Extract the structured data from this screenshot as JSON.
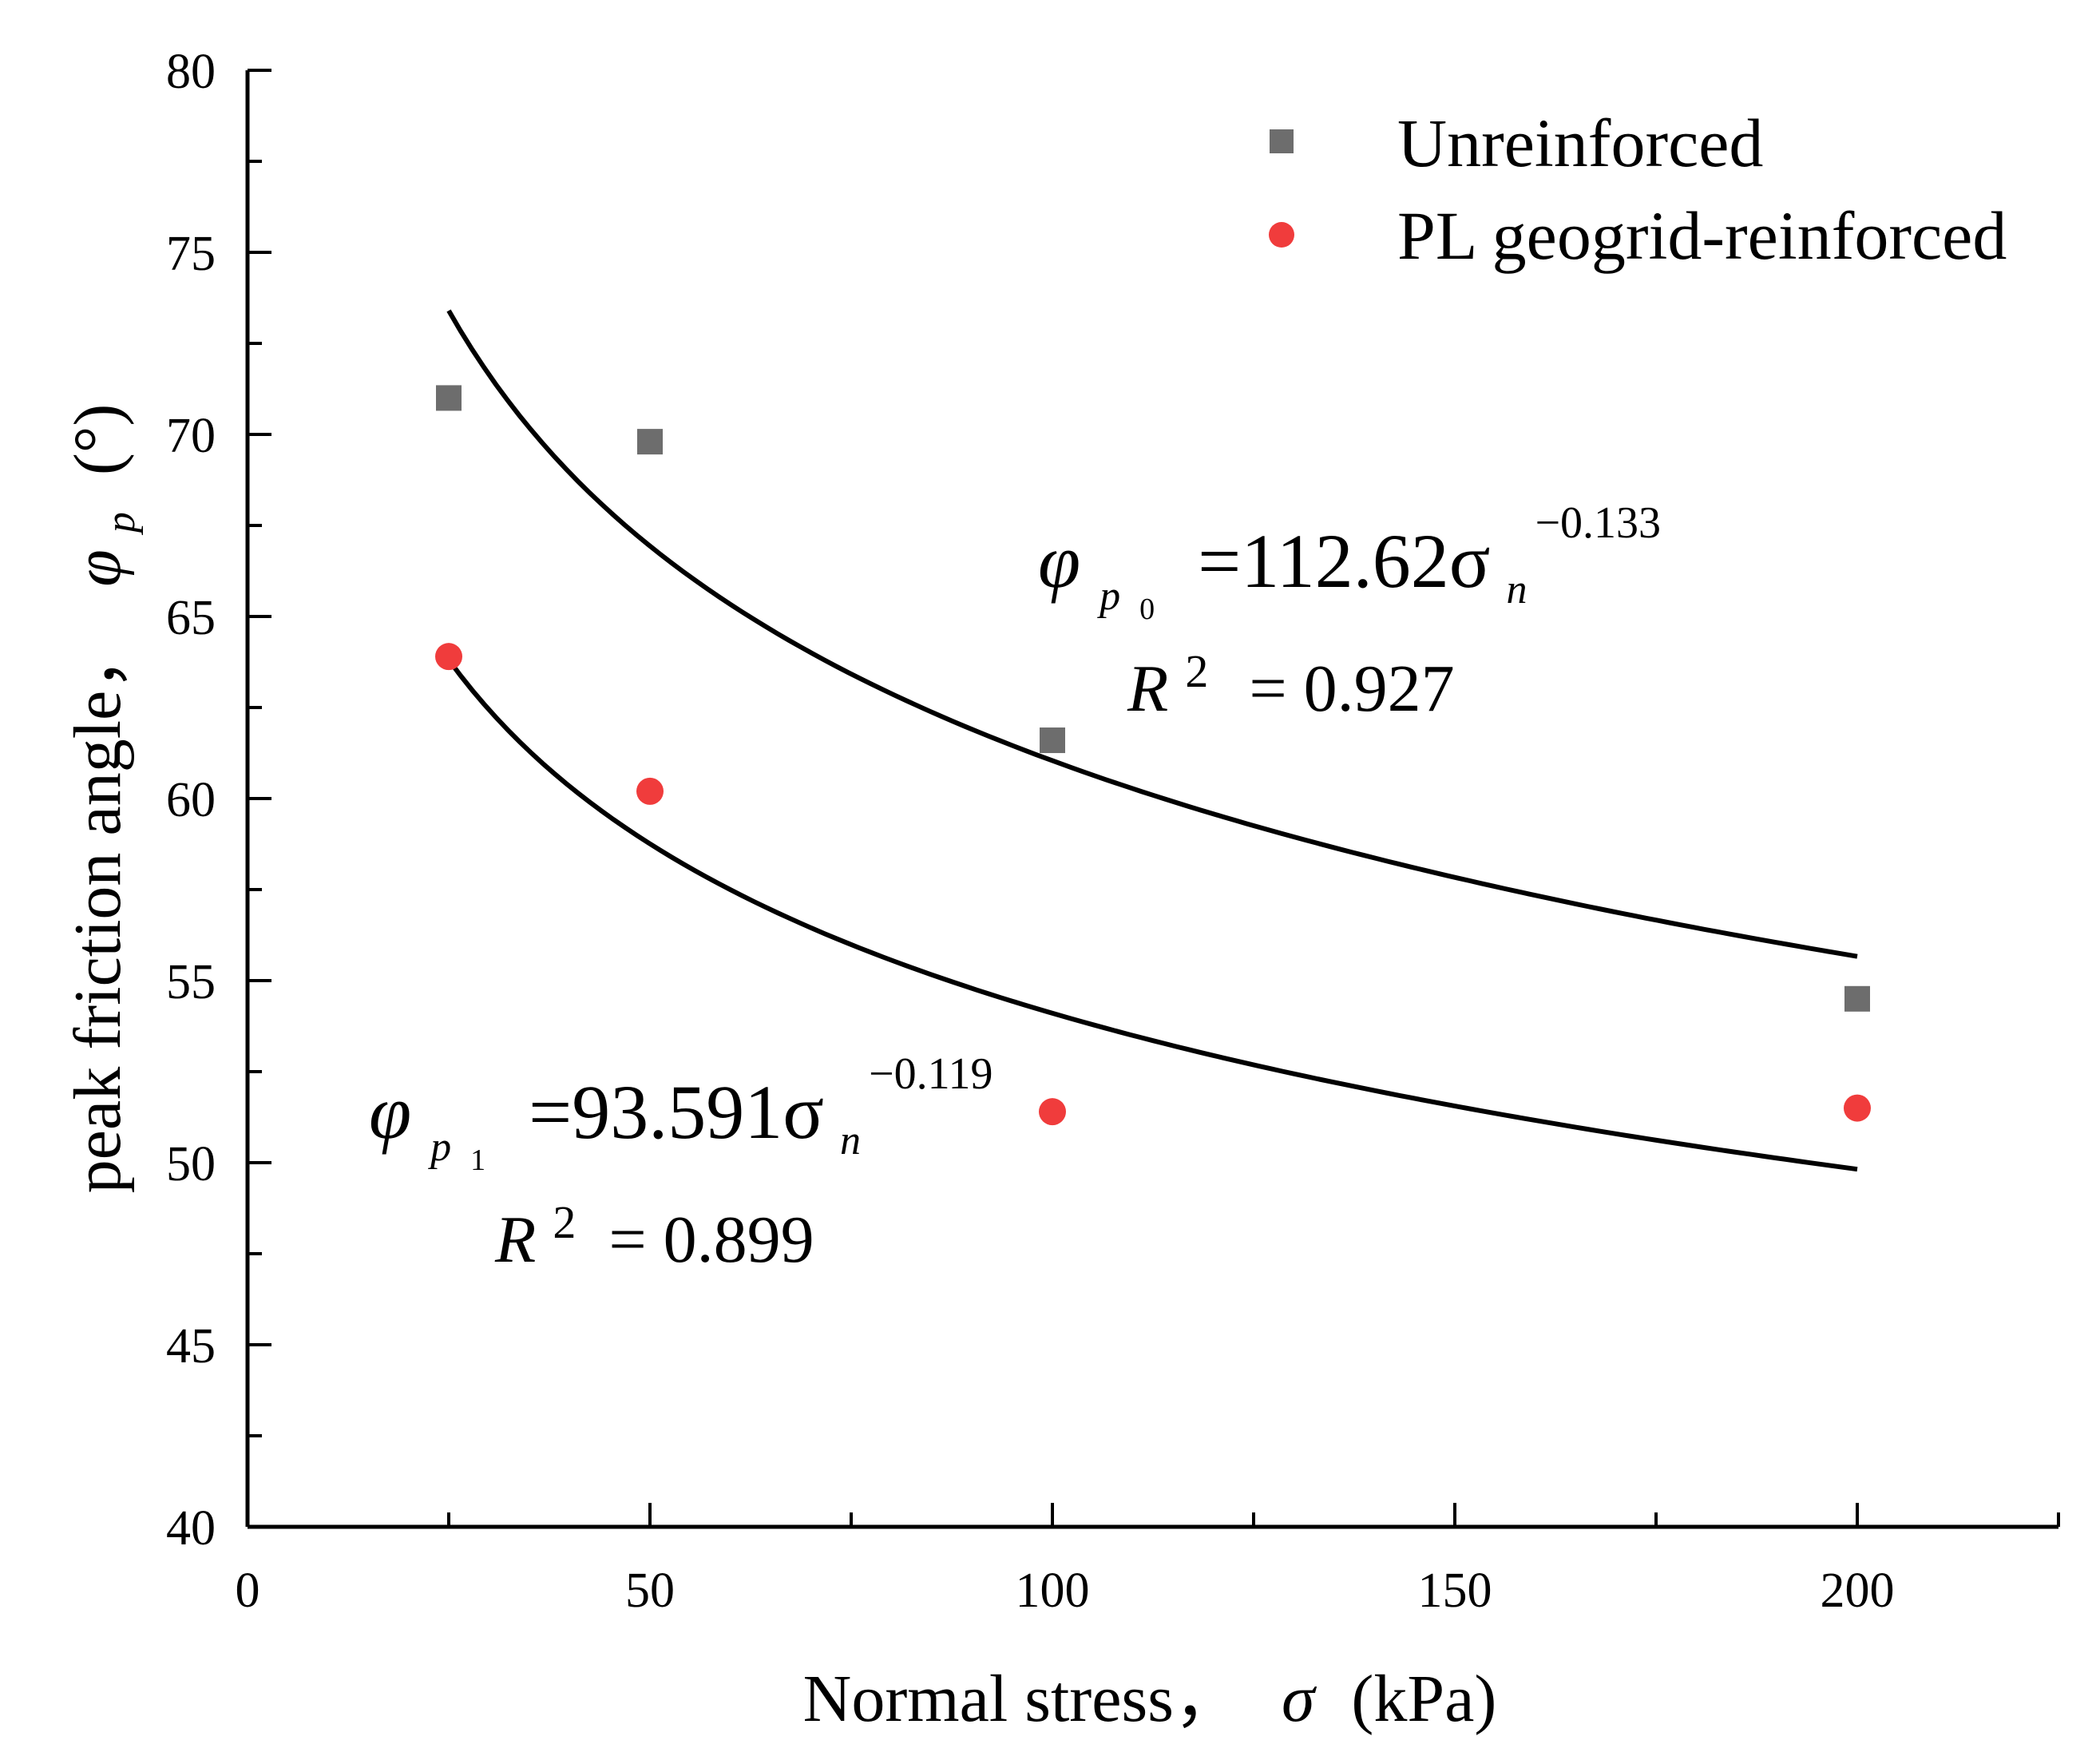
{
  "chart_data": {
    "type": "scatter",
    "xlabel": "Normal stress，",
    "xlabel_symbol": "σ",
    "xlabel_unit": "(kPa)",
    "ylabel": "peak friction angle，",
    "ylabel_symbol": "φ",
    "ylabel_sub": "p",
    "ylabel_unit": "(°)",
    "xlim": [
      0,
      225
    ],
    "ylim": [
      40,
      80
    ],
    "x_ticks": [
      0,
      50,
      100,
      150,
      200
    ],
    "x_minor_step": 25,
    "y_ticks": [
      40,
      45,
      50,
      55,
      60,
      65,
      70,
      75,
      80
    ],
    "y_minor_step": 2.5,
    "grid": false,
    "legend_position": "top-right",
    "series": [
      {
        "name": "Unreinforced",
        "marker": "square",
        "color": "#6d6d6d",
        "points": [
          {
            "x": 25,
            "y": 71.0
          },
          {
            "x": 50,
            "y": 69.8
          },
          {
            "x": 100,
            "y": 61.6
          },
          {
            "x": 200,
            "y": 54.5
          }
        ]
      },
      {
        "name": "PL geogrid-reinforced",
        "marker": "circle",
        "color": "#f03c3c",
        "points": [
          {
            "x": 25,
            "y": 63.9
          },
          {
            "x": 50,
            "y": 60.2
          },
          {
            "x": 100,
            "y": 51.4
          },
          {
            "x": 200,
            "y": 51.5
          }
        ]
      }
    ],
    "fits": [
      {
        "a": 112.62,
        "b": -0.133,
        "x_range": [
          25,
          200
        ],
        "eq_lhs": "φ",
        "eq_sub": "p",
        "eq_sub_index": "0",
        "eq_rhs": "=112.62σ",
        "eq_var_sub": "n",
        "eq_exp": "−0.133",
        "r2_label": "R",
        "r2_sup": "2",
        "r2_value": "= 0.927"
      },
      {
        "a": 93.591,
        "b": -0.119,
        "x_range": [
          25,
          200
        ],
        "eq_lhs": "φ",
        "eq_sub": "p",
        "eq_sub_index": "1",
        "eq_rhs": "=93.591σ",
        "eq_var_sub": "n",
        "eq_exp": "−0.119",
        "r2_label": "R",
        "r2_sup": "2",
        "r2_value": "= 0.899"
      }
    ]
  }
}
